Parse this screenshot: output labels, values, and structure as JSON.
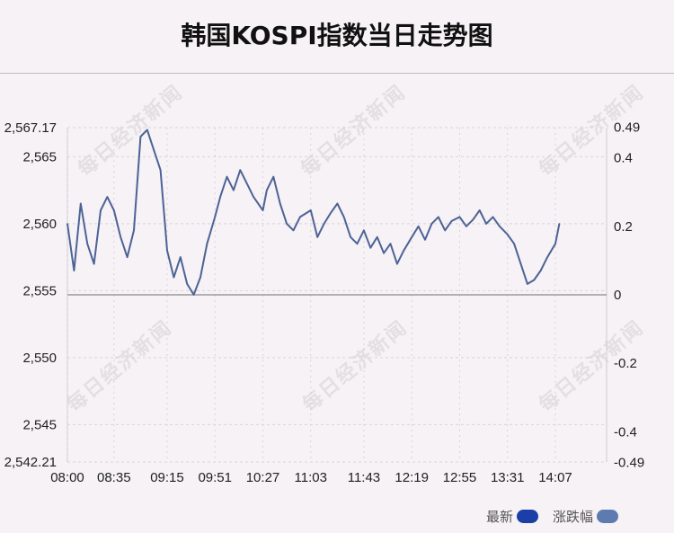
{
  "title": "韩国KOSPI指数当日走势图",
  "watermark_text": "每日经济新闻",
  "legend": [
    {
      "label": "最新",
      "color": "#1a3fa6"
    },
    {
      "label": "涨跌幅",
      "color": "#5e7bb0"
    }
  ],
  "colors": {
    "line": "#4d6396",
    "baseline": "#8a8a8a",
    "grid": "#d9d4d8"
  },
  "chart_data": {
    "type": "line",
    "x_ticks": [
      "08:00",
      "08:35",
      "09:15",
      "09:51",
      "10:27",
      "11:03",
      "11:43",
      "12:19",
      "12:55",
      "13:31",
      "14:07"
    ],
    "y_left_ticks": [
      "2,567.17",
      "2,565",
      "2,560",
      "2,555",
      "2,550",
      "2,545",
      "2,542.21"
    ],
    "y_left_values": [
      2567.17,
      2565,
      2560,
      2555,
      2550,
      2545,
      2542.21
    ],
    "y_right_ticks": [
      "0.49",
      "0.4",
      "0.2",
      "0",
      "-0.2",
      "-0.4",
      "-0.49"
    ],
    "y_right_values": [
      0.49,
      0.4,
      0.2,
      0,
      -0.2,
      -0.4,
      -0.49
    ],
    "ylim": [
      2542.21,
      2567.17
    ],
    "prev_close": 2554.69,
    "grid": true,
    "series": [
      {
        "name": "最新",
        "x": [
          "08:00",
          "08:05",
          "08:10",
          "08:15",
          "08:20",
          "08:25",
          "08:30",
          "08:35",
          "08:40",
          "08:45",
          "08:50",
          "08:55",
          "09:00",
          "09:05",
          "09:10",
          "09:15",
          "09:20",
          "09:25",
          "09:30",
          "09:35",
          "09:40",
          "09:45",
          "09:51",
          "09:55",
          "10:00",
          "10:05",
          "10:10",
          "10:15",
          "10:20",
          "10:27",
          "10:30",
          "10:35",
          "10:40",
          "10:45",
          "10:50",
          "10:55",
          "11:03",
          "11:08",
          "11:13",
          "11:18",
          "11:23",
          "11:28",
          "11:33",
          "11:38",
          "11:43",
          "11:48",
          "11:53",
          "11:58",
          "12:03",
          "12:08",
          "12:13",
          "12:19",
          "12:24",
          "12:29",
          "12:34",
          "12:39",
          "12:44",
          "12:49",
          "12:55",
          "13:00",
          "13:05",
          "13:10",
          "13:15",
          "13:20",
          "13:25",
          "13:31",
          "13:36",
          "13:41",
          "13:46",
          "13:51",
          "13:56",
          "14:01",
          "14:07",
          "14:10"
        ],
        "values": [
          2560.0,
          2556.5,
          2561.5,
          2558.5,
          2557.0,
          2561.0,
          2562.0,
          2561.0,
          2559.0,
          2557.5,
          2559.5,
          2566.5,
          2567.0,
          2565.5,
          2564.0,
          2558.0,
          2556.0,
          2557.5,
          2555.5,
          2554.7,
          2556.0,
          2558.5,
          2560.5,
          2562.0,
          2563.5,
          2562.5,
          2564.0,
          2563.0,
          2562.0,
          2561.0,
          2562.5,
          2563.5,
          2561.5,
          2560.0,
          2559.5,
          2560.5,
          2561.0,
          2559.0,
          2560.0,
          2560.8,
          2561.5,
          2560.5,
          2559.0,
          2558.5,
          2559.5,
          2558.2,
          2559.0,
          2557.8,
          2558.5,
          2557.0,
          2558.0,
          2559.0,
          2559.8,
          2558.8,
          2560.0,
          2560.5,
          2559.5,
          2560.2,
          2560.5,
          2559.8,
          2560.3,
          2561.0,
          2560.0,
          2560.5,
          2559.8,
          2559.2,
          2558.5,
          2557.0,
          2555.5,
          2555.8,
          2556.5,
          2557.5,
          2558.5,
          2560.0
        ]
      }
    ]
  }
}
